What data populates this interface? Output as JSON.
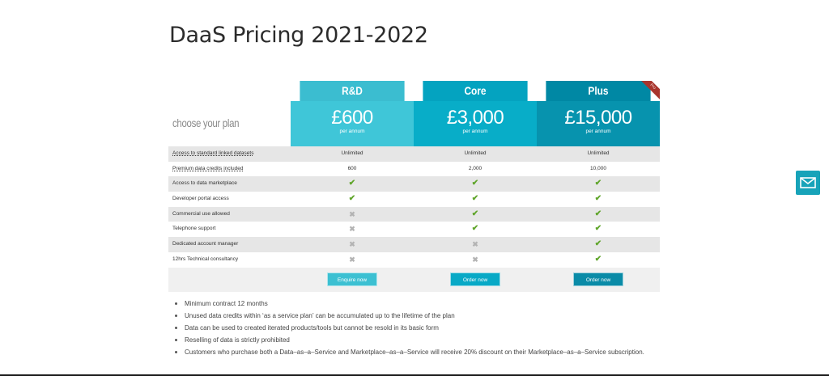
{
  "page": {
    "title": "DaaS Pricing 2021-2022"
  },
  "table": {
    "choose_label": "choose your plan",
    "plans": [
      {
        "name": "R&D",
        "price": "£600",
        "period": "per annum",
        "button": "Enquire now"
      },
      {
        "name": "Core",
        "price": "£3,000",
        "period": "per annum",
        "button": "Order now"
      },
      {
        "name": "Plus",
        "price": "£15,000",
        "period": "per annum",
        "button": "Order now",
        "ribbon": "Pro"
      }
    ],
    "features": [
      {
        "name": "Access to standard linked datasets",
        "values": [
          "Unlimited",
          "Unlimited",
          "Unlimited"
        ]
      },
      {
        "name": "Premium data credits included",
        "values": [
          "600",
          "2,000",
          "10,000"
        ]
      },
      {
        "name": "Access to data marketplace",
        "values": [
          "✔",
          "✔",
          "✔"
        ]
      },
      {
        "name": "Developer portal access",
        "values": [
          "✔",
          "✔",
          "✔"
        ]
      },
      {
        "name": "Commercial use allowed",
        "values": [
          "✖",
          "✔",
          "✔"
        ]
      },
      {
        "name": "Telephone support",
        "values": [
          "✖",
          "✔",
          "✔"
        ]
      },
      {
        "name": "Dedicated account manager",
        "values": [
          "✖",
          "✖",
          "✔"
        ]
      },
      {
        "name": "12hrs Technical consultancy",
        "values": [
          "✖",
          "✖",
          "✔"
        ]
      }
    ]
  },
  "notes": [
    "Minimum contract 12 months",
    "Unused data credits within ‘as a service plan’ can be accumulated up to the lifetime of the plan",
    "Data can be used to created iterated products/tools but cannot be resold in its basic form",
    "Reselling of data is strictly prohibited",
    "Customers who purchase both a Data–as–a–Service and Marketplace–as–a–Service will receive 20% discount on their Marketplace–as–a–Service subscription."
  ],
  "widget": {
    "icon": "mail-icon"
  },
  "colors": {
    "rd": "#3fc6d8",
    "core": "#08adc8",
    "plus": "#0793ae",
    "tick": "#5fa52a",
    "cross": "#b3b3b3",
    "widget": "#17a3b9"
  }
}
